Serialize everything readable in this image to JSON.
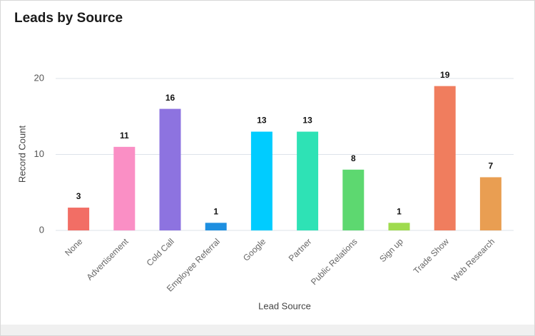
{
  "chart_data": {
    "type": "bar",
    "title": "Leads by Source",
    "x_label": "Lead Source",
    "y_label": "Record Count",
    "categories": [
      "None",
      "Advertisement",
      "Cold Call",
      "Employee Referral",
      "Google",
      "Partner",
      "Public Relations",
      "Sign up",
      "Trade Show",
      "Web Research"
    ],
    "values": [
      3,
      11,
      16,
      1,
      13,
      13,
      8,
      1,
      19,
      7
    ],
    "colors": [
      "#f26e65",
      "#fa8fc5",
      "#8d73e0",
      "#1e8fe0",
      "#00ccff",
      "#2ee2b5",
      "#5dd870",
      "#9fdb4e",
      "#f07d5e",
      "#e99e52"
    ],
    "ylim": [
      0,
      20
    ],
    "yticks": [
      0,
      10,
      20
    ],
    "grid": true
  }
}
